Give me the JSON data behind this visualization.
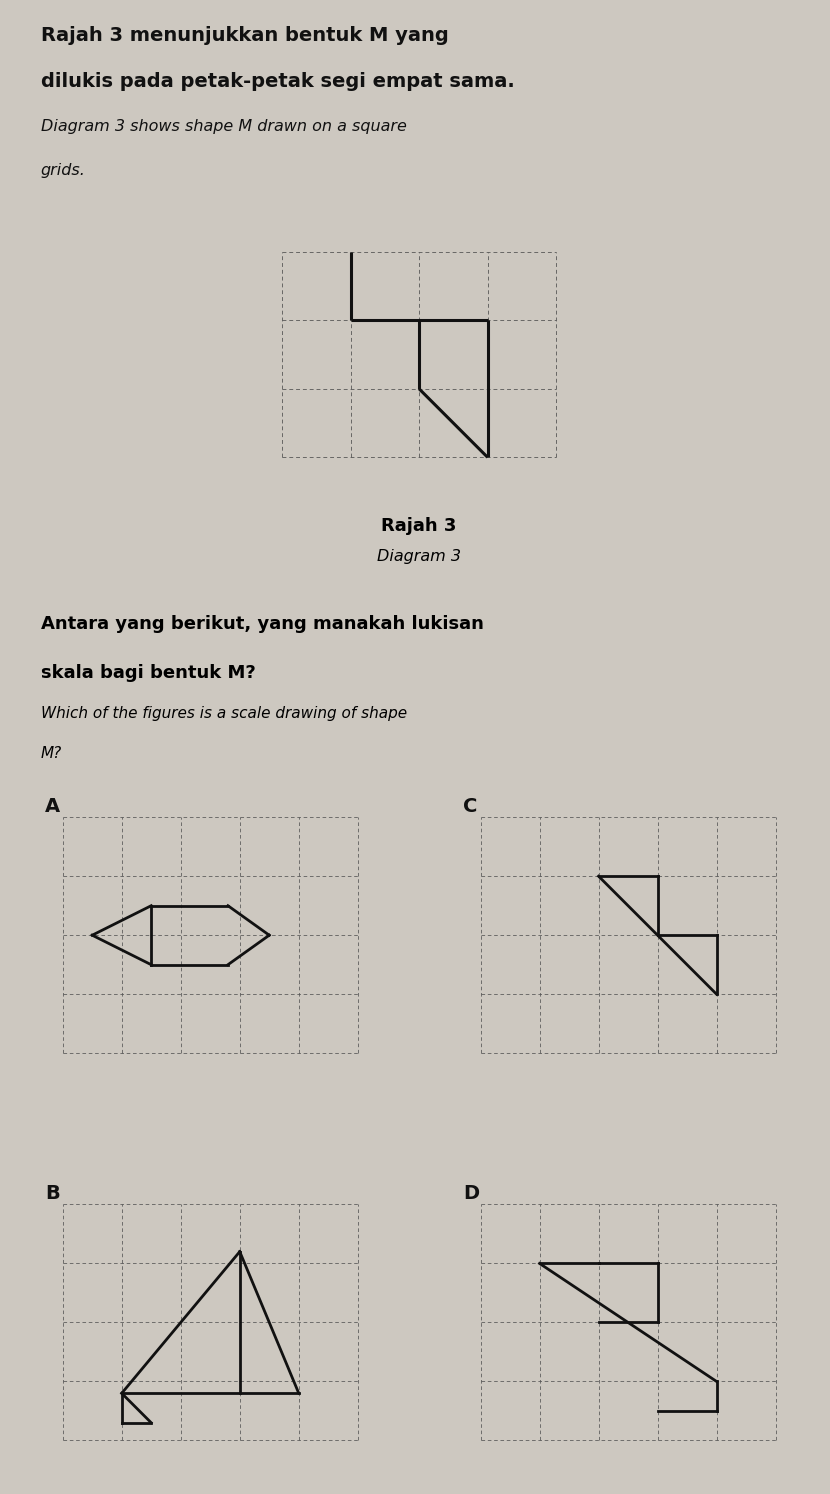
{
  "bg_color": "#cdc8c0",
  "title1_malay": "Rajah 3 menunjukkan bentuk M yang",
  "title2_malay": "dilukis pada petak-petak segi empat sama.",
  "title1_eng": "Diagram 3 shows shape M drawn on a square",
  "title2_eng": "grids.",
  "diagram_label_malay": "Rajah 3",
  "diagram_label_eng": "Diagram 3",
  "question_malay1": "Antara yang berikut, yang manakah lukisan",
  "question_malay2": "skala bagi bentuk M?",
  "question_eng1": "Which of the figures is a scale drawing of shape",
  "question_eng2": "M?",
  "line_color": "#111111",
  "grid_color": "#555555",
  "shape_color": "#111111"
}
